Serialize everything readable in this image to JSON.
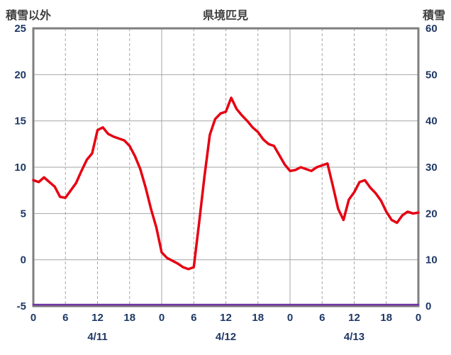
{
  "chart_data": {
    "type": "line",
    "title": "県境匹見",
    "left_axis": {
      "title": "積雪以外",
      "min": -5,
      "max": 25,
      "ticks": [
        25,
        20,
        15,
        10,
        5,
        0,
        -5
      ]
    },
    "right_axis": {
      "title": "積雪",
      "min": 0,
      "max": 60,
      "ticks": [
        60,
        50,
        40,
        30,
        20,
        10,
        0
      ]
    },
    "x_axis": {
      "hours_span": 72,
      "tick_step": 6,
      "tick_labels": [
        "0",
        "6",
        "12",
        "18",
        "0",
        "6",
        "12",
        "18",
        "0",
        "6",
        "12",
        "18",
        "0"
      ],
      "date_labels": [
        "4/11",
        "4/12",
        "4/13"
      ]
    },
    "grid": {
      "horizontal_values": [
        20,
        15,
        10,
        5,
        0
      ],
      "solid_vertical_hours": [
        24,
        48
      ],
      "dashed_vertical_hours": [
        6,
        12,
        18,
        30,
        36,
        42,
        54,
        60,
        66
      ]
    },
    "series": [
      {
        "name": "積雪以外",
        "axis": "left",
        "color": "#e60012",
        "width": 3.5,
        "values": [
          8.6,
          8.4,
          8.9,
          8.4,
          7.9,
          6.8,
          6.7,
          7.5,
          8.3,
          9.6,
          10.8,
          11.5,
          14.0,
          14.3,
          13.6,
          13.3,
          13.1,
          12.9,
          12.3,
          11.2,
          9.8,
          7.8,
          5.5,
          3.5,
          0.8,
          0.2,
          -0.1,
          -0.4,
          -0.8,
          -1.0,
          -0.8,
          4.0,
          9.0,
          13.5,
          15.2,
          15.8,
          16.0,
          17.5,
          16.3,
          15.6,
          15.0,
          14.3,
          13.8,
          13.0,
          12.5,
          12.3,
          11.3,
          10.3,
          9.6,
          9.7,
          10.0,
          9.8,
          9.6,
          10.0,
          10.2,
          10.4,
          8.0,
          5.5,
          4.3,
          6.5,
          7.3,
          8.4,
          8.6,
          7.8,
          7.2,
          6.4,
          5.2,
          4.3,
          4.0,
          4.8,
          5.2,
          5.0,
          5.1
        ]
      },
      {
        "name": "積雪",
        "axis": "right",
        "color": "#7030a0",
        "width": 2.5,
        "constant": 0
      }
    ],
    "colors": {
      "grid": "#a6a6a6",
      "border": "#7f7f7f",
      "tick_text": "#1f3864",
      "title_text": "#3f3f3f"
    }
  }
}
